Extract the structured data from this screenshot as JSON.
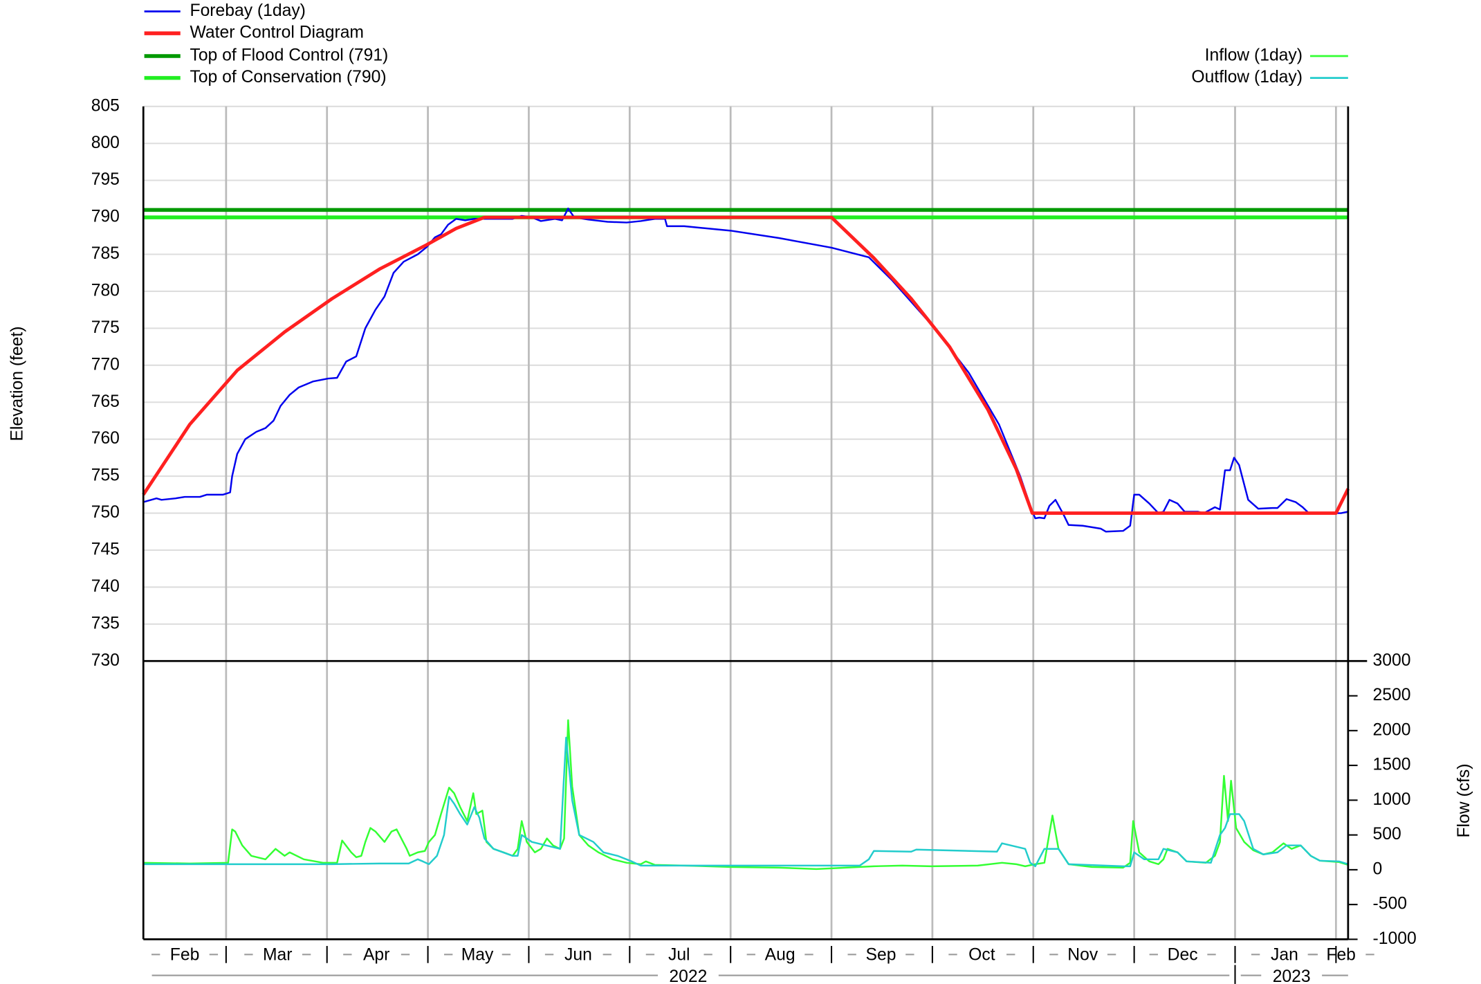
{
  "chart_data": [
    {
      "type": "line",
      "ylabel": "Elevation (feet)",
      "xlim": [
        1.18,
        13.12
      ],
      "xticks": [
        {
          "value": 1.59,
          "label": "Feb"
        },
        {
          "value": 2.51,
          "label": "Mar"
        },
        {
          "value": 3.49,
          "label": "Apr"
        },
        {
          "value": 4.49,
          "label": "May"
        },
        {
          "value": 5.49,
          "label": "Jun"
        },
        {
          "value": 6.49,
          "label": "Jul"
        },
        {
          "value": 7.49,
          "label": "Aug"
        },
        {
          "value": 8.49,
          "label": "Sep"
        },
        {
          "value": 9.49,
          "label": "Oct"
        },
        {
          "value": 10.49,
          "label": "Nov"
        },
        {
          "value": 11.48,
          "label": "Dec"
        },
        {
          "value": 12.49,
          "label": "Jan"
        },
        {
          "value": 13.05,
          "label": "Feb"
        }
      ],
      "xgrid": [
        2,
        3,
        4,
        5,
        6,
        7,
        8,
        9,
        10,
        11,
        12,
        13
      ],
      "year_ticks": [
        {
          "value": 6.58,
          "label": "2022"
        },
        {
          "value": 12.56,
          "label": "2023"
        }
      ],
      "ylim": [
        730,
        805
      ],
      "yticks": [
        730,
        735,
        740,
        745,
        750,
        755,
        760,
        765,
        770,
        775,
        780,
        785,
        790,
        795,
        800,
        805
      ],
      "grid": true,
      "legend": "upper left",
      "series": [
        {
          "name": "Forebay (1day)",
          "color": "#0000ee",
          "x": [
            1.18,
            1.31,
            1.36,
            1.5,
            1.59,
            1.74,
            1.81,
            1.97,
            2.04,
            2.06,
            2.11,
            2.19,
            2.3,
            2.39,
            2.47,
            2.54,
            2.63,
            2.72,
            2.86,
            3.01,
            3.1,
            3.19,
            3.29,
            3.38,
            3.48,
            3.57,
            3.66,
            3.76,
            3.9,
            3.99,
            4.07,
            4.13,
            4.2,
            4.28,
            4.37,
            4.46,
            4.65,
            4.84,
            4.93,
            5.03,
            5.12,
            5.26,
            5.33,
            5.39,
            5.45,
            5.59,
            5.78,
            5.97,
            6.11,
            6.25,
            6.35,
            6.37,
            6.54,
            7.0,
            7.48,
            8.0,
            8.37,
            8.6,
            8.99,
            9.36,
            9.66,
            9.87,
            9.99,
            10.02,
            10.06,
            10.11,
            10.16,
            10.22,
            10.3,
            10.35,
            10.49,
            10.67,
            10.72,
            10.89,
            10.96,
            11.0,
            11.05,
            11.15,
            11.24,
            11.29,
            11.35,
            11.43,
            11.5,
            11.63,
            11.69,
            11.8,
            11.85,
            11.9,
            11.95,
            11.99,
            12.04,
            12.13,
            12.23,
            12.37,
            12.42,
            12.51,
            12.6,
            12.67,
            12.73,
            12.98,
            13.05,
            13.12
          ],
          "values": [
            751.5,
            752,
            751.8,
            752,
            752.2,
            752.2,
            752.5,
            752.5,
            752.8,
            755,
            758,
            760,
            761,
            761.5,
            762.5,
            764.5,
            766,
            767,
            767.8,
            768.2,
            768.3,
            770.5,
            771.2,
            775,
            777.5,
            779.3,
            782.5,
            784,
            785,
            786,
            787.3,
            787.7,
            789,
            789.8,
            789.6,
            789.8,
            789.8,
            789.8,
            790.2,
            790,
            789.5,
            789.8,
            789.6,
            791.2,
            790,
            789.7,
            789.4,
            789.3,
            789.5,
            789.8,
            789.8,
            788.8,
            788.8,
            788.2,
            787.2,
            785.9,
            784.6,
            781.5,
            775.5,
            769,
            762,
            755,
            750.2,
            749.3,
            749.4,
            749.3,
            751,
            751.8,
            749.8,
            748.4,
            748.3,
            747.9,
            747.5,
            747.6,
            748.3,
            752.5,
            752.5,
            751.3,
            750,
            750.2,
            751.8,
            751.3,
            750.2,
            750.2,
            750,
            750.8,
            750.5,
            755.8,
            755.8,
            757.5,
            756.5,
            751.8,
            750.6,
            750.7,
            750.7,
            751.9,
            751.5,
            750.8,
            750,
            750,
            750,
            750.2
          ]
        },
        {
          "name": "Water Control Diagram",
          "color": "#ff2020",
          "x": [
            1.18,
            1.64,
            2.11,
            2.58,
            3.05,
            3.52,
            3.99,
            4.28,
            4.56,
            8.0,
            8.42,
            8.79,
            9.17,
            9.55,
            9.83,
            9.99,
            13.0,
            13.12
          ],
          "values": [
            752.5,
            762,
            769.3,
            774.5,
            779,
            783,
            786.3,
            788.5,
            790,
            790,
            784.5,
            779,
            772.5,
            764,
            756,
            750,
            750,
            753.3
          ]
        }
      ],
      "hlines": [
        {
          "name": "Top of Flood Control (791)",
          "color": "#009900",
          "value": 791
        },
        {
          "name": "Top of Conservation (790)",
          "color": "#22ee22",
          "value": 790
        }
      ]
    },
    {
      "type": "line",
      "y2label": "Flow (cfs)",
      "y2lim": [
        -1000,
        3000
      ],
      "y2ticks": [
        -1000,
        -500,
        0,
        500,
        1000,
        1500,
        2000,
        2500,
        3000
      ],
      "legend": "upper right",
      "series": [
        {
          "name": "Inflow (1day)",
          "color": "#33ff33",
          "axis": "y2",
          "x": [
            1.18,
            1.64,
            2.02,
            2.06,
            2.09,
            2.16,
            2.25,
            2.39,
            2.49,
            2.58,
            2.63,
            2.77,
            2.96,
            3.1,
            3.15,
            3.24,
            3.29,
            3.34,
            3.38,
            3.43,
            3.48,
            3.57,
            3.64,
            3.69,
            3.79,
            3.82,
            3.9,
            3.97,
            4.01,
            4.07,
            4.13,
            4.21,
            4.26,
            4.32,
            4.39,
            4.45,
            4.48,
            4.54,
            4.58,
            4.65,
            4.75,
            4.84,
            4.89,
            4.93,
            4.98,
            5.06,
            5.12,
            5.18,
            5.24,
            5.31,
            5.35,
            5.39,
            5.43,
            5.5,
            5.59,
            5.69,
            5.83,
            5.97,
            6.11,
            6.16,
            6.25,
            6.54,
            7.0,
            7.48,
            7.85,
            8.0,
            8.42,
            8.7,
            8.99,
            9.45,
            9.69,
            9.83,
            9.92,
            10.02,
            10.11,
            10.19,
            10.25,
            10.35,
            10.58,
            10.89,
            10.96,
            10.99,
            11.05,
            11.15,
            11.24,
            11.29,
            11.33,
            11.43,
            11.52,
            11.71,
            11.8,
            11.85,
            11.89,
            11.93,
            11.96,
            12.01,
            12.09,
            12.18,
            12.28,
            12.37,
            12.48,
            12.56,
            12.65,
            12.75,
            12.84,
            13.03,
            13.12
          ],
          "values": [
            100,
            90,
            100,
            580,
            550,
            350,
            200,
            150,
            300,
            200,
            250,
            150,
            100,
            100,
            420,
            250,
            180,
            200,
            400,
            600,
            550,
            400,
            550,
            580,
            300,
            200,
            250,
            270,
            400,
            500,
            800,
            1180,
            1100,
            900,
            700,
            1100,
            800,
            850,
            400,
            300,
            250,
            200,
            300,
            700,
            400,
            250,
            300,
            450,
            350,
            300,
            450,
            2150,
            1200,
            500,
            350,
            250,
            150,
            100,
            80,
            120,
            70,
            60,
            40,
            30,
            10,
            20,
            50,
            60,
            50,
            60,
            100,
            80,
            50,
            80,
            100,
            780,
            300,
            80,
            40,
            30,
            100,
            700,
            250,
            120,
            80,
            150,
            300,
            250,
            120,
            100,
            200,
            400,
            1350,
            700,
            1280,
            600,
            400,
            280,
            220,
            250,
            380,
            300,
            350,
            200,
            130,
            110,
            70
          ]
        },
        {
          "name": "Outflow (1day)",
          "color": "#22cccc",
          "axis": "y2",
          "x": [
            1.18,
            2.02,
            2.58,
            3.05,
            3.52,
            3.81,
            3.9,
            3.95,
            4.01,
            4.09,
            4.16,
            4.21,
            4.26,
            4.32,
            4.39,
            4.46,
            4.51,
            4.56,
            4.65,
            4.84,
            4.89,
            4.93,
            5.03,
            5.17,
            5.31,
            5.37,
            5.43,
            5.5,
            5.64,
            5.74,
            5.88,
            6.02,
            6.11,
            6.54,
            8.0,
            8.28,
            8.37,
            8.42,
            8.79,
            8.84,
            9.64,
            9.69,
            9.92,
            9.97,
            10.02,
            10.11,
            10.25,
            10.35,
            10.89,
            10.96,
            11.0,
            11.1,
            11.24,
            11.29,
            11.43,
            11.52,
            11.76,
            11.85,
            11.9,
            11.95,
            12.04,
            12.09,
            12.18,
            12.28,
            12.42,
            12.51,
            12.65,
            12.75,
            12.84,
            13.03,
            13.12
          ],
          "values": [
            80,
            80,
            80,
            80,
            90,
            90,
            150,
            120,
            80,
            200,
            500,
            1050,
            950,
            800,
            650,
            900,
            750,
            450,
            300,
            200,
            200,
            500,
            400,
            350,
            300,
            1900,
            1000,
            500,
            400,
            250,
            200,
            120,
            60,
            60,
            60,
            60,
            150,
            270,
            260,
            290,
            260,
            380,
            300,
            100,
            50,
            300,
            300,
            80,
            50,
            50,
            250,
            150,
            150,
            300,
            250,
            120,
            100,
            500,
            600,
            800,
            800,
            700,
            300,
            220,
            250,
            350,
            350,
            200,
            130,
            120,
            80
          ]
        }
      ]
    }
  ]
}
